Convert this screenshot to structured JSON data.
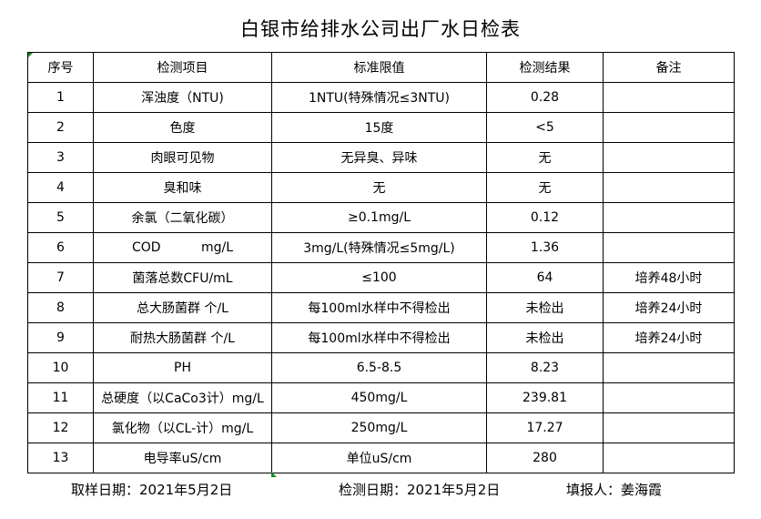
{
  "title": "白银市给排水公司出厂水日检表",
  "headers": [
    "序号",
    "检测项目",
    "标准限值",
    "检测结果",
    "备注"
  ],
  "rows": [
    [
      "1",
      "浑浊度（NTU)",
      "1NTU(特殊情况≤3NTU)",
      "0.28",
      ""
    ],
    [
      "2",
      "色度",
      "15度",
      "<5",
      ""
    ],
    [
      "3",
      "肉眼可见物",
      "无异臭、异味",
      "无",
      ""
    ],
    [
      "4",
      "臭和味",
      "无",
      "无",
      ""
    ],
    [
      "5",
      "余氯（二氧化碳）",
      "≥0.1mg/L",
      "0.12",
      ""
    ],
    [
      "6",
      "COD          mg/L",
      "3mg/L(特殊情况≤5mg/L)",
      "1.36",
      ""
    ],
    [
      "7",
      "菌落总数CFU/mL",
      "≤100",
      "64",
      "培养48小时"
    ],
    [
      "8",
      "总大肠菌群 个/L",
      "每100ml水样中不得检出",
      "未检出",
      "培养24小时"
    ],
    [
      "9",
      "耐热大肠菌群 个/L",
      "每100ml水样中不得检出",
      "未检出",
      "培养24小时"
    ],
    [
      "10",
      "PH",
      "6.5-8.5",
      "8.23",
      ""
    ],
    [
      "11",
      "总硬度（以CaCo3计）mg/L",
      "450mg/L",
      "239.81",
      ""
    ],
    [
      "12",
      "氯化物（以CL-计）mg/L",
      "250mg/L",
      "17.27",
      ""
    ],
    [
      "13",
      "电导率uS/cm",
      "单位uS/cm",
      "280",
      ""
    ]
  ],
  "footer": {
    "sampling_date": "取样日期：2021年5月2日",
    "test_date": "检测日期：2021年5月2日",
    "reporter": "填报人：姜海霞"
  }
}
